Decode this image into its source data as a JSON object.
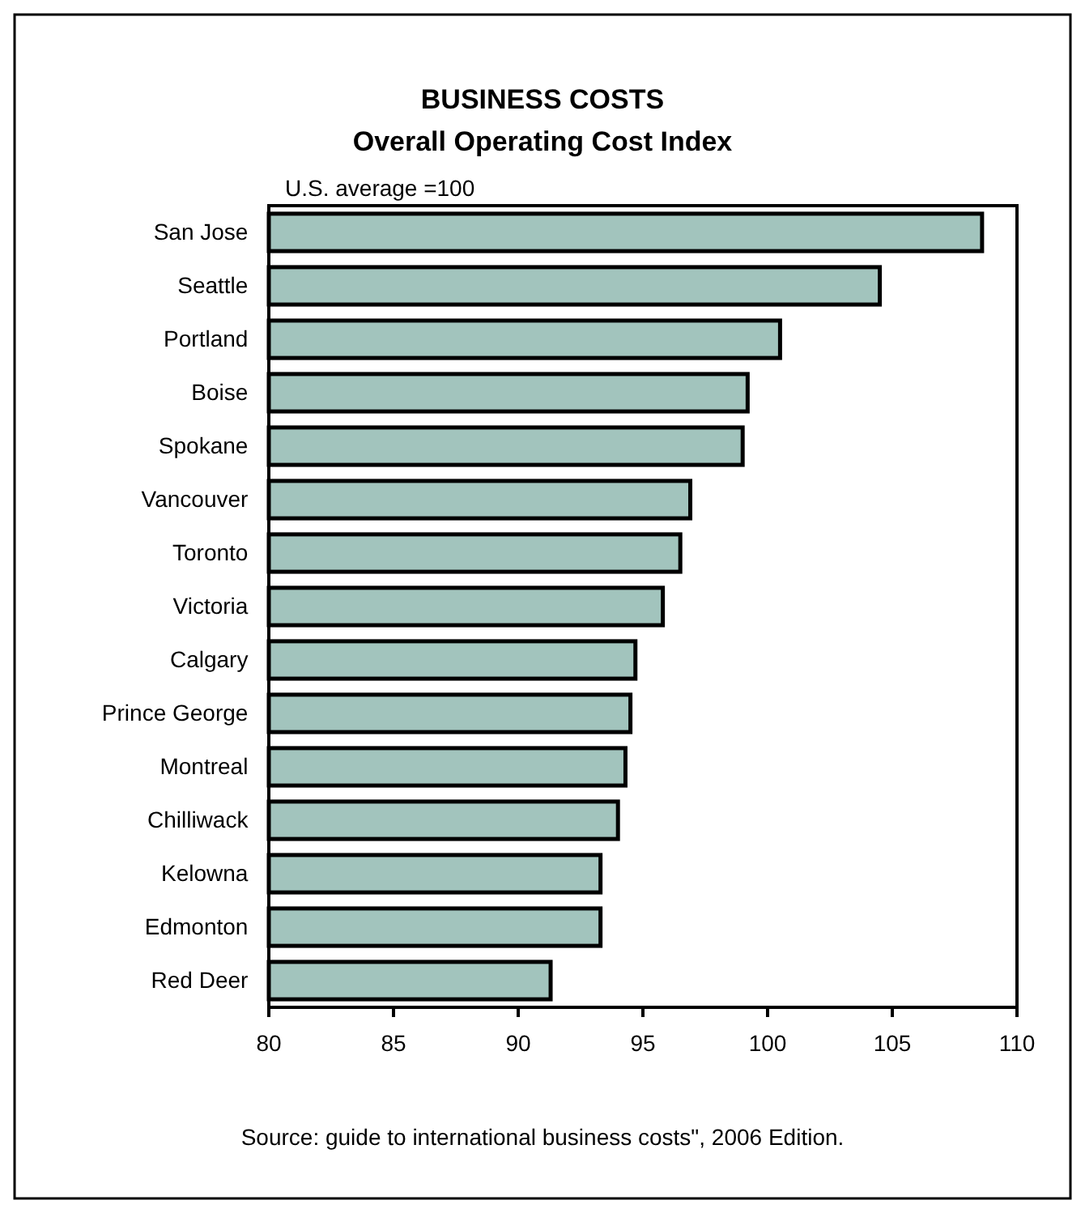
{
  "chart_data": {
    "type": "bar",
    "orientation": "horizontal",
    "title": "BUSINESS COSTS",
    "subtitle": "Overall Operating Cost Index",
    "categories": [
      "San Jose",
      "Seattle",
      "Portland",
      "Boise",
      "Spokane",
      "Vancouver",
      "Toronto",
      "Victoria",
      "Calgary",
      "Prince George",
      "Montreal",
      "Chilliwack",
      "Kelowna",
      "Edmonton",
      "Red Deer"
    ],
    "values": [
      108.6,
      104.5,
      100.5,
      99.2,
      99.0,
      96.9,
      96.5,
      95.8,
      94.7,
      94.5,
      94.3,
      94.0,
      93.3,
      93.3,
      91.3
    ],
    "color": "#a2c4bd",
    "xlim": [
      80,
      110
    ],
    "xticks": [
      80,
      85,
      90,
      95,
      100,
      105,
      110
    ],
    "annotations": [
      "U.S. average =100",
      "Source: guide to international  business costs\", 2006 Edition."
    ],
    "grid": false
  }
}
